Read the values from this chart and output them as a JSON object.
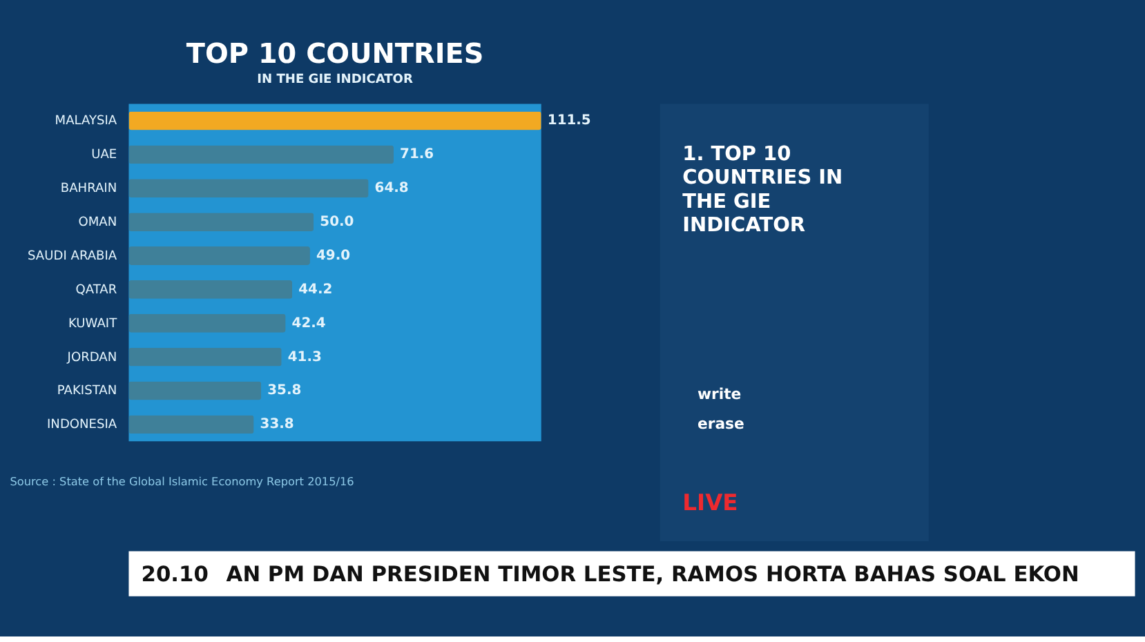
{
  "chart_data": {
    "type": "bar",
    "orientation": "horizontal",
    "title": "TOP 10 COUNTRIES",
    "subtitle": "IN THE GIE INDICATOR",
    "categories": [
      "MALAYSIA",
      "UAE",
      "BAHRAIN",
      "OMAN",
      "SAUDI ARABIA",
      "QATAR",
      "KUWAIT",
      "JORDAN",
      "PAKISTAN",
      "INDONESIA"
    ],
    "values": [
      111.5,
      71.6,
      64.8,
      50.0,
      49.0,
      44.2,
      42.4,
      41.3,
      35.8,
      33.8
    ],
    "value_labels": [
      "111.5",
      "71.6",
      "64.8",
      "50.0",
      "49.0",
      "44.2",
      "42.4",
      "41.3",
      "35.8",
      "33.8"
    ],
    "colors": [
      "#f2a922",
      "#3f8099",
      "#3f8099",
      "#3f8099",
      "#3f8099",
      "#3f8099",
      "#3f8099",
      "#3f8099",
      "#3f8099",
      "#3f8099"
    ],
    "annotations": [
      "Source : State of the Global Islamic Economy Report 2015/16",
      "1. TOP 10 COUNTRIES IN THE GIE INDICATOR",
      "write",
      "erase",
      "LIVE",
      "20.10",
      "AN PM DAN PRESIDEN TIMOR LESTE, RAMOS HORTA BAHAS SOAL EKON"
    ]
  }
}
